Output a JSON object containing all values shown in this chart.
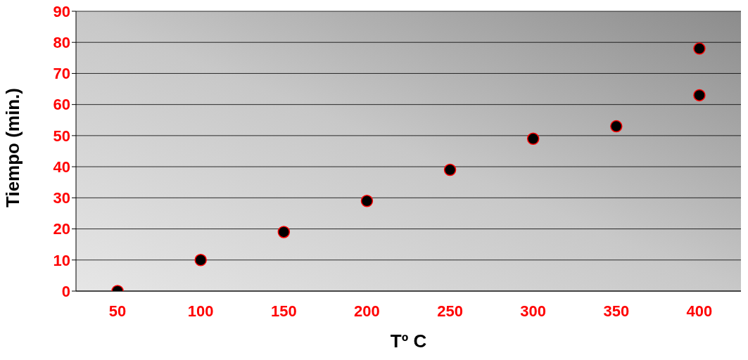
{
  "chart_data": {
    "type": "scatter",
    "xlabel": "Tº C",
    "ylabel": "Tiempo (min.)",
    "categories": [
      "50",
      "100",
      "150",
      "200",
      "250",
      "300",
      "350",
      "400"
    ],
    "series": [
      {
        "color": "#000000",
        "x": [
          "50",
          "100",
          "150",
          "200",
          "250",
          "300",
          "350",
          "400",
          "400"
        ],
        "values": [
          0,
          10,
          19,
          29,
          39,
          49,
          53,
          63,
          78
        ]
      }
    ],
    "ylim": [
      0,
      90
    ],
    "yticks": [
      0,
      10,
      20,
      30,
      40,
      50,
      60,
      70,
      80,
      90
    ],
    "grid": "y",
    "marker": "circle",
    "legend": false
  }
}
